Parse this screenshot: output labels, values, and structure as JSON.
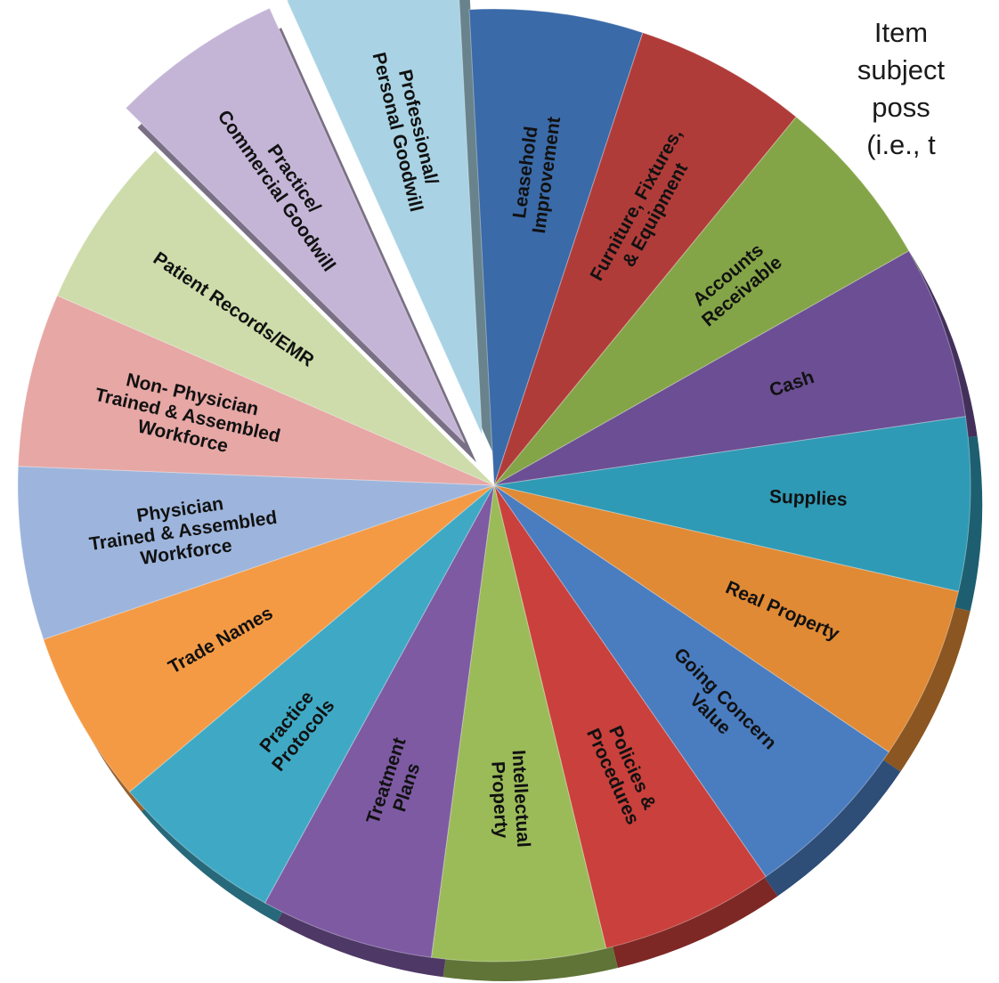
{
  "corner_text": [
    "Item",
    "subject",
    "poss",
    "(i.e., t"
  ],
  "chart_data": {
    "type": "pie",
    "title": "",
    "legend": "none",
    "exploded": [
      "Professional/ Personal Goodwill",
      "Practice/ Commercial Goodwill"
    ],
    "slices": [
      {
        "label": "Leasehold Improvement",
        "lines": [
          "Leasehold",
          "Improvement"
        ],
        "value": 1,
        "color": "#3a6aa8"
      },
      {
        "label": "Furniture, Fixtures, & Equipment",
        "lines": [
          "Furniture, Fixtures,",
          "& Equipment"
        ],
        "value": 1,
        "color": "#b03c3a"
      },
      {
        "label": "Accounts Receivable",
        "lines": [
          "Accounts",
          "Receivable"
        ],
        "value": 1,
        "color": "#84a547"
      },
      {
        "label": "Cash",
        "lines": [
          "Cash"
        ],
        "value": 1,
        "color": "#6b4e93"
      },
      {
        "label": "Supplies",
        "lines": [
          "Supplies"
        ],
        "value": 1,
        "color": "#2f9ab5"
      },
      {
        "label": "Real Property",
        "lines": [
          "Real Property"
        ],
        "value": 1,
        "color": "#e08a35"
      },
      {
        "label": "Going Concern Value",
        "lines": [
          "Going Concern",
          "Value"
        ],
        "value": 1,
        "color": "#4a7cc0"
      },
      {
        "label": "Policies & Procedures",
        "lines": [
          "Policies &",
          "Procedures"
        ],
        "value": 1,
        "color": "#c9403c"
      },
      {
        "label": "Intellectual Property",
        "lines": [
          "Intellectual",
          "Property"
        ],
        "value": 1,
        "color": "#9bbb59"
      },
      {
        "label": "Treatment Plans",
        "lines": [
          "Treatment",
          "Plans"
        ],
        "value": 1,
        "color": "#7e5aa3"
      },
      {
        "label": "Practice Protocols",
        "lines": [
          "Practice",
          "Protocols"
        ],
        "value": 1,
        "color": "#3fa9c5"
      },
      {
        "label": "Trade Names",
        "lines": [
          "Trade Names"
        ],
        "value": 1,
        "color": "#f49a45"
      },
      {
        "label": "Physician Trained & Assembled Workforce",
        "lines": [
          "Physician",
          "Trained & Assembled",
          "Workforce"
        ],
        "value": 1,
        "color": "#9db5dc"
      },
      {
        "label": "Non- Physician Trained & Assembled Workforce",
        "lines": [
          "Non- Physician",
          "Trained & Assembled",
          "Workforce"
        ],
        "value": 1,
        "color": "#e6a7a5"
      },
      {
        "label": "Patient Records/EMR",
        "lines": [
          "Patient Records/EMR"
        ],
        "value": 1,
        "color": "#cddcaa"
      },
      {
        "label": "Practice/ Commercial Goodwill",
        "lines": [
          "Practice/",
          "Commercial Goodwill"
        ],
        "value": 1,
        "color": "#c4b5d7"
      },
      {
        "label": "Professional/ Personal Goodwill",
        "lines": [
          "Professional/",
          "Personal   Goodwill"
        ],
        "value": 1,
        "color": "#a9d3e4"
      }
    ]
  }
}
